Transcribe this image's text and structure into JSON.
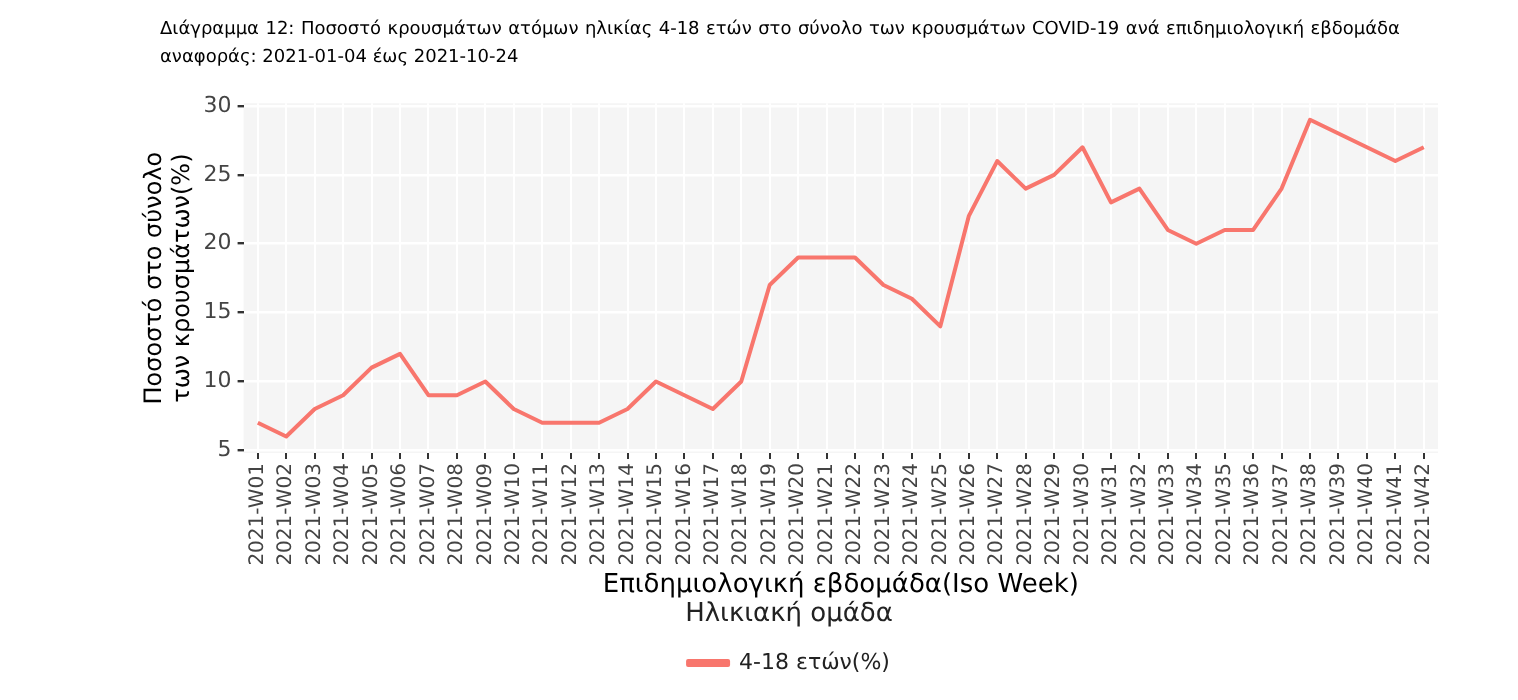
{
  "chart_data": {
    "type": "line",
    "title": "Διάγραμμα 12: Ποσοστό κρουσμάτων ατόμων ηλικίας 4-18 ετών στο σύνολο των κρουσμάτων COVID-19 ανά επιδημιολογική εβδομάδα αναφοράς: 2021-01-04 έως 2021-10-24",
    "xlabel": "Επιδημιολογική εβδομάδα(Iso Week)",
    "ylabel": "Ποσοστό στο σύνολο των κρουσμάτων(%)",
    "legend_title": "Ηλικιακή ομάδα",
    "categories": [
      "2021-W01",
      "2021-W02",
      "2021-W03",
      "2021-W04",
      "2021-W05",
      "2021-W06",
      "2021-W07",
      "2021-W08",
      "2021-W09",
      "2021-W10",
      "2021-W11",
      "2021-W12",
      "2021-W13",
      "2021-W14",
      "2021-W15",
      "2021-W16",
      "2021-W17",
      "2021-W18",
      "2021-W19",
      "2021-W20",
      "2021-W21",
      "2021-W22",
      "2021-W23",
      "2021-W24",
      "2021-W25",
      "2021-W26",
      "2021-W27",
      "2021-W28",
      "2021-W29",
      "2021-W30",
      "2021-W31",
      "2021-W32",
      "2021-W33",
      "2021-W34",
      "2021-W35",
      "2021-W36",
      "2021-W37",
      "2021-W38",
      "2021-W39",
      "2021-W40",
      "2021-W41",
      "2021-W42"
    ],
    "series": [
      {
        "name": "4-18 ετών(%)",
        "color": "#f8766d",
        "values": [
          7,
          6,
          8,
          9,
          11,
          12,
          9,
          9,
          10,
          8,
          7,
          7,
          7,
          8,
          10,
          9,
          8,
          10,
          17,
          19,
          19,
          19,
          17,
          16,
          14,
          22,
          26,
          24,
          25,
          27,
          23,
          24,
          21,
          20,
          21,
          21,
          24,
          29,
          28,
          27,
          26,
          27
        ]
      }
    ],
    "ylim": [
      4.8,
      30.2
    ],
    "yticks": [
      5,
      10,
      15,
      20,
      25,
      30
    ],
    "grid": true,
    "legend": "bottom",
    "marker": "none",
    "line_style": "solid"
  }
}
